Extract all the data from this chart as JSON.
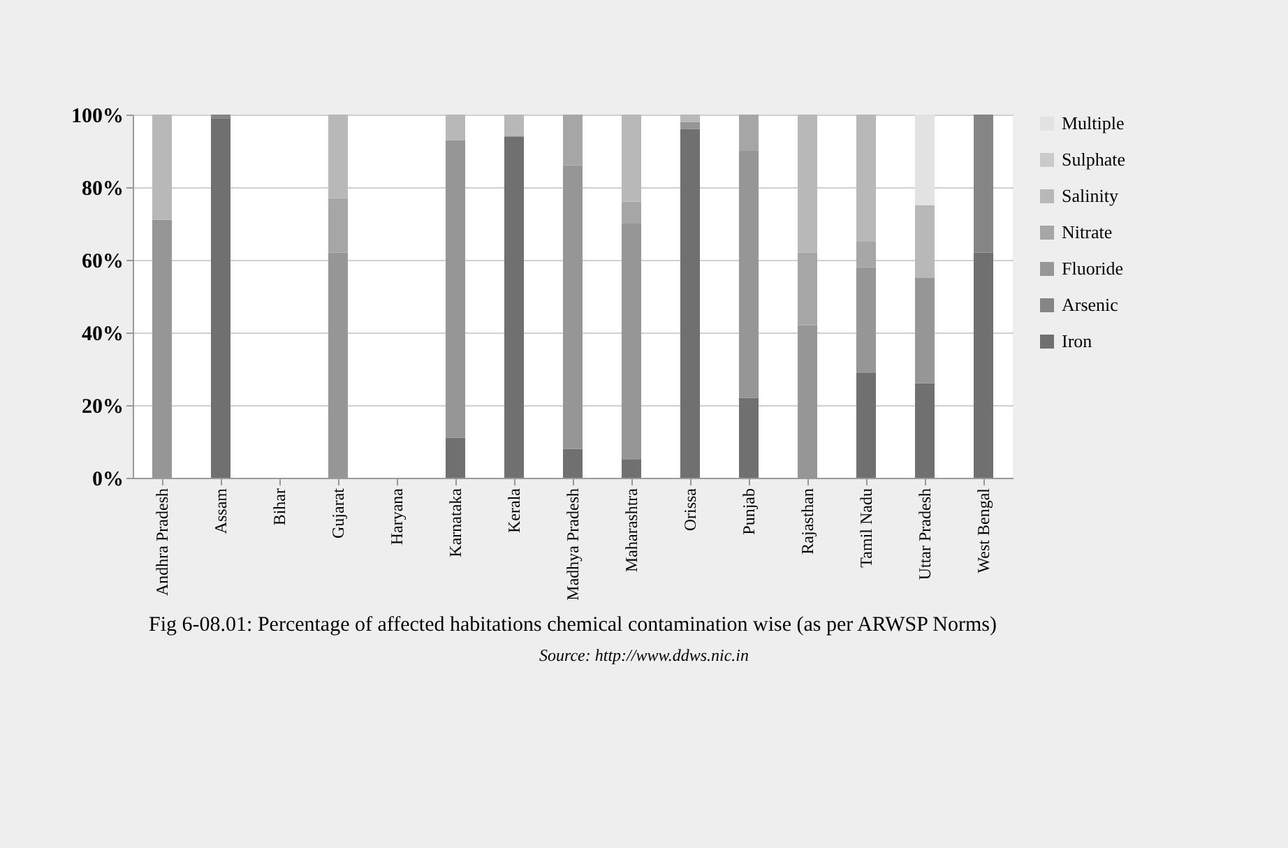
{
  "chart_data": {
    "type": "bar",
    "stacked": true,
    "title": "Fig 6-08.01: Percentage of affected habitations chemical contamination wise (as per ARWSP Norms)",
    "annotations": [
      "Source: http://www.ddws.nic.in"
    ],
    "categories": [
      "Andhra Pradesh",
      "Assam",
      "Bihar",
      "Gujarat",
      "Haryana",
      "Karnataka",
      "Kerala",
      "Madhya Pradesh",
      "Maharashtra",
      "Orissa",
      "Punjab",
      "Rajasthan",
      "Tamil Nadu",
      "Uttar Pradesh",
      "West Bengal"
    ],
    "series": [
      {
        "name": "Iron",
        "color": "#707070",
        "values": [
          0,
          99,
          0,
          0,
          0,
          11,
          94,
          8,
          5,
          96,
          22,
          0,
          29,
          26,
          62
        ]
      },
      {
        "name": "Arsenic",
        "color": "#858585",
        "values": [
          0,
          1,
          0,
          0,
          0,
          0,
          0,
          0,
          0,
          0,
          0,
          0,
          0,
          0,
          38
        ]
      },
      {
        "name": "Fluoride",
        "color": "#969696",
        "values": [
          71,
          0,
          0,
          62,
          0,
          82,
          0,
          78,
          65,
          2,
          68,
          42,
          29,
          29,
          0
        ]
      },
      {
        "name": "Nitrate",
        "color": "#a6a6a6",
        "values": [
          0,
          0,
          0,
          15,
          0,
          0,
          0,
          14,
          6,
          0,
          10,
          20,
          7,
          0,
          0
        ]
      },
      {
        "name": "Salinity",
        "color": "#b8b8b8",
        "values": [
          29,
          0,
          0,
          23,
          0,
          7,
          6,
          0,
          24,
          2,
          0,
          38,
          35,
          20,
          0
        ]
      },
      {
        "name": "Sulphate",
        "color": "#cacaca",
        "values": [
          0,
          0,
          0,
          0,
          0,
          0,
          0,
          0,
          0,
          0,
          0,
          0,
          0,
          0,
          0
        ]
      },
      {
        "name": "Multiple",
        "color": "#e2e2e2",
        "values": [
          0,
          0,
          0,
          0,
          0,
          0,
          0,
          0,
          0,
          0,
          0,
          0,
          0,
          25,
          0
        ]
      }
    ],
    "ylim": [
      0,
      100
    ],
    "yticks": [
      {
        "value": 0,
        "label": "0%"
      },
      {
        "value": 20,
        "label": "20%"
      },
      {
        "value": 40,
        "label": "40%"
      },
      {
        "value": 60,
        "label": "60%"
      },
      {
        "value": 80,
        "label": "80%"
      },
      {
        "value": 100,
        "label": "100%"
      }
    ],
    "grid": "y",
    "legend": "right"
  }
}
